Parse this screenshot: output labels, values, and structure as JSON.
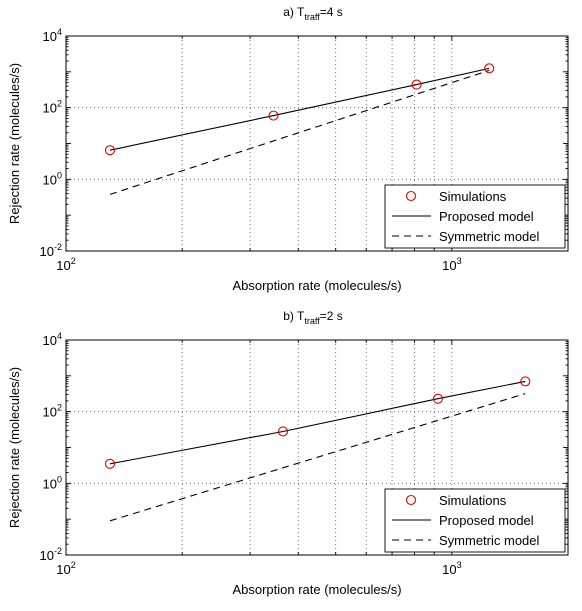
{
  "chart_data": [
    {
      "type": "line",
      "title_prefix": "a)",
      "title_var": "T",
      "title_sub": "traff",
      "title_rest": "=4 s",
      "xlabel": "Absorption rate (molecules/s)",
      "ylabel": "Rejection rate (molecules/s)",
      "xscale": "log",
      "yscale": "log",
      "xlim": [
        100,
        2000
      ],
      "ylim": [
        0.01,
        10000
      ],
      "xticks": [
        {
          "value": 100,
          "base": "10",
          "exp": "2"
        },
        {
          "value": 1000,
          "base": "10",
          "exp": "3"
        }
      ],
      "yticks": [
        {
          "value": 0.01,
          "base": "10",
          "exp": "-2"
        },
        {
          "value": 1,
          "base": "10",
          "exp": "0"
        },
        {
          "value": 100,
          "base": "10",
          "exp": "2"
        },
        {
          "value": 10000,
          "base": "10",
          "exp": "4"
        }
      ],
      "grid": true,
      "legend_position": "bottom-right",
      "series": [
        {
          "name": "Simulations",
          "style": "markers",
          "color": "#e00000",
          "x": [
            130,
            345,
            810,
            1250
          ],
          "y": [
            6.5,
            60,
            440,
            1250
          ]
        },
        {
          "name": "Proposed model",
          "style": "solid",
          "color": "#000000",
          "x": [
            130,
            345,
            810,
            1250
          ],
          "y": [
            6.5,
            60,
            440,
            1250
          ]
        },
        {
          "name": "Symmetric model",
          "style": "dashed",
          "color": "#000000",
          "x": [
            130,
            1250
          ],
          "y": [
            0.38,
            1100
          ]
        }
      ]
    },
    {
      "type": "line",
      "title_prefix": "b)",
      "title_var": "T",
      "title_sub": "traff",
      "title_rest": "=2 s",
      "xlabel": "Absorption rate (molecules/s)",
      "ylabel": "Rejection rate (molecules/s)",
      "xscale": "log",
      "yscale": "log",
      "xlim": [
        100,
        2000
      ],
      "ylim": [
        0.01,
        10000
      ],
      "xticks": [
        {
          "value": 100,
          "base": "10",
          "exp": "2"
        },
        {
          "value": 1000,
          "base": "10",
          "exp": "3"
        }
      ],
      "yticks": [
        {
          "value": 0.01,
          "base": "10",
          "exp": "-2"
        },
        {
          "value": 1,
          "base": "10",
          "exp": "0"
        },
        {
          "value": 100,
          "base": "10",
          "exp": "2"
        },
        {
          "value": 10000,
          "base": "10",
          "exp": "4"
        }
      ],
      "grid": true,
      "legend_position": "bottom-right",
      "series": [
        {
          "name": "Simulations",
          "style": "markers",
          "color": "#e00000",
          "x": [
            130,
            365,
            920,
            1550
          ],
          "y": [
            3.5,
            28,
            230,
            700
          ]
        },
        {
          "name": "Proposed model",
          "style": "solid",
          "color": "#000000",
          "x": [
            130,
            365,
            920,
            1550
          ],
          "y": [
            3.5,
            28,
            230,
            700
          ]
        },
        {
          "name": "Symmetric model",
          "style": "dashed",
          "color": "#000000",
          "x": [
            130,
            1550
          ],
          "y": [
            0.09,
            320
          ]
        }
      ]
    }
  ]
}
